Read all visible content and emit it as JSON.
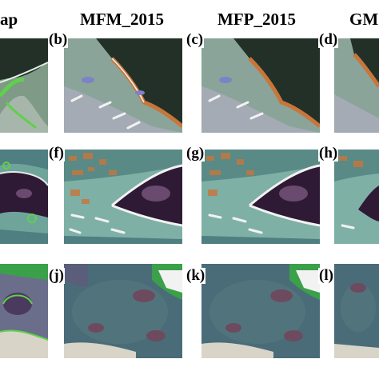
{
  "columns": [
    {
      "title": "ap"
    },
    {
      "title": "MFM_2015"
    },
    {
      "title": "MFP_2015"
    },
    {
      "title": "GM"
    }
  ],
  "rows": [
    {
      "labels": [
        "",
        "(b)",
        "(c)",
        "(d)"
      ]
    },
    {
      "labels": [
        "",
        "(f)",
        "(g)",
        "(h)"
      ]
    },
    {
      "labels": [
        "",
        "(j)",
        "(k)",
        "(l)"
      ]
    }
  ],
  "colors": {
    "row1_land": "#7f9a86",
    "row1_water": "#223028",
    "row1_shore": "#8aa99a",
    "row2_water": "#7fb0a6",
    "row2_dark": "#2e1a35",
    "row2_land": "#4f7f80",
    "row3_water": "#4a6c78",
    "row3_land": "#6a6e8a",
    "row3_green": "#3aa04a",
    "detect_orange": "#c8763a",
    "detect_green": "#5fd04a",
    "scar_white": "#f2f2f2"
  }
}
